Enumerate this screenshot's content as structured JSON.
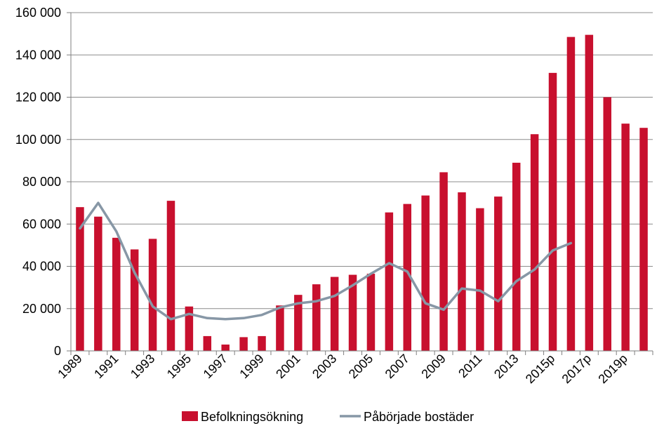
{
  "chart_data": {
    "type": "bar",
    "categories": [
      "1989",
      "1990",
      "1991",
      "1992",
      "1993",
      "1994",
      "1995",
      "1996",
      "1997",
      "1998",
      "1999",
      "2000",
      "2001",
      "2002",
      "2003",
      "2004",
      "2005",
      "2006",
      "2007",
      "2008",
      "2009",
      "2010",
      "2011",
      "2012",
      "2013",
      "2014",
      "2015p",
      "2016p",
      "2017p",
      "2018p",
      "2019p",
      "2020p"
    ],
    "x_tick_labels": [
      "1989",
      "",
      "1991",
      "",
      "1993",
      "",
      "1995",
      "",
      "1997",
      "",
      "1999",
      "",
      "2001",
      "",
      "2003",
      "",
      "2005",
      "",
      "2007",
      "",
      "2009",
      "",
      "2011",
      "",
      "2013",
      "",
      "2015p",
      "",
      "2017p",
      "",
      "2019p",
      ""
    ],
    "series": [
      {
        "name": "Befolkningsökning",
        "type": "bar",
        "color": "#c8102e",
        "values": [
          68000,
          63500,
          53500,
          48000,
          53000,
          71000,
          21000,
          7000,
          3000,
          6500,
          7000,
          21500,
          26500,
          31500,
          35000,
          36000,
          36500,
          65500,
          69500,
          73500,
          84500,
          75000,
          67500,
          73000,
          89000,
          102500,
          131500,
          148500,
          149500,
          120000,
          107500,
          105500
        ]
      },
      {
        "name": "Påbörjade bostäder",
        "type": "line",
        "color": "#8797a6",
        "values": [
          58000,
          70000,
          56500,
          37000,
          21000,
          15000,
          17500,
          15500,
          15000,
          15500,
          17000,
          20500,
          22500,
          23500,
          26000,
          31000,
          36500,
          41500,
          37500,
          22500,
          19500,
          29500,
          28500,
          23500,
          33000,
          38500,
          47500,
          51000,
          null,
          null,
          null,
          null
        ]
      }
    ],
    "y_ticks": [
      0,
      20000,
      40000,
      60000,
      80000,
      100000,
      120000,
      140000,
      160000
    ],
    "y_tick_labels": [
      "0",
      "20 000",
      "40 000",
      "60 000",
      "80 000",
      "100 000",
      "120 000",
      "140 000",
      "160 000"
    ],
    "ylim": [
      0,
      160000
    ],
    "title": "",
    "xlabel": "",
    "ylabel": "",
    "grid": "horizontal",
    "legend_position": "bottom"
  }
}
